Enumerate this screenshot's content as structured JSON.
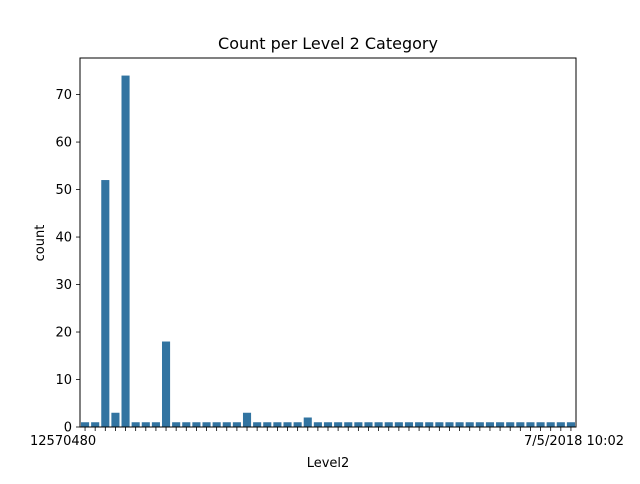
{
  "chart_data": {
    "type": "bar",
    "title": "Count per Level 2 Category",
    "xlabel": "Level2",
    "ylabel": "count",
    "ylim": [
      0,
      77.7
    ],
    "yticks": [
      0,
      10,
      20,
      30,
      40,
      50,
      60,
      70
    ],
    "grid": false,
    "bar_color": "#3274a1",
    "values": [
      1,
      1,
      52,
      3,
      74,
      1,
      1,
      1,
      18,
      1,
      1,
      1,
      1,
      1,
      1,
      1,
      3,
      1,
      1,
      1,
      1,
      1,
      2,
      1,
      1,
      1,
      1,
      1,
      1,
      1,
      1,
      1,
      1,
      1,
      1,
      1,
      1,
      1,
      1,
      1,
      1,
      1,
      1,
      1,
      1,
      1,
      1,
      1,
      1
    ],
    "visible_tick_fragments": {
      "left": "12570480",
      "right": "7/5/2018 10:02"
    }
  }
}
